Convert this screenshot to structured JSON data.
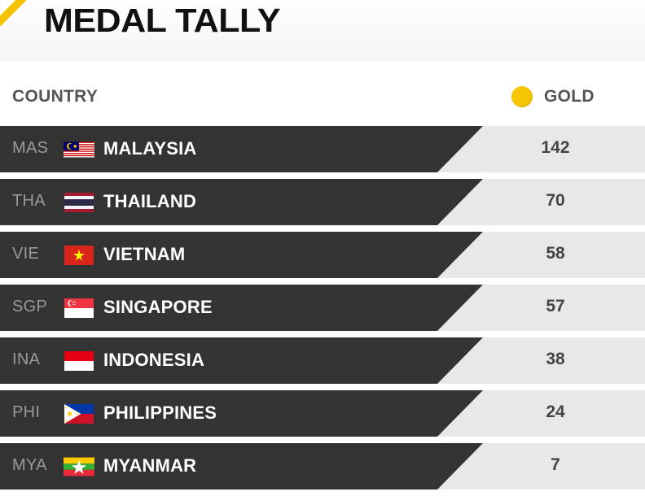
{
  "title": "MEDAL TALLY",
  "header": {
    "country_label": "COUNTRY",
    "gold_label": "GOLD",
    "gold_icon": "gold-medal-icon",
    "gold_color": "#f7c600"
  },
  "colors": {
    "row_dark": "#333333",
    "row_light": "#e8e8e8",
    "accent": "#f5c400"
  },
  "rows": [
    {
      "code": "MAS",
      "flag": "malaysia-flag-icon",
      "name": "MALAYSIA",
      "gold": "142"
    },
    {
      "code": "THA",
      "flag": "thailand-flag-icon",
      "name": "THAILAND",
      "gold": "70"
    },
    {
      "code": "VIE",
      "flag": "vietnam-flag-icon",
      "name": "VIETNAM",
      "gold": "58"
    },
    {
      "code": "SGP",
      "flag": "singapore-flag-icon",
      "name": "SINGAPORE",
      "gold": "57"
    },
    {
      "code": "INA",
      "flag": "indonesia-flag-icon",
      "name": "INDONESIA",
      "gold": "38"
    },
    {
      "code": "PHI",
      "flag": "philippines-flag-icon",
      "name": "PHILIPPINES",
      "gold": "24"
    },
    {
      "code": "MYA",
      "flag": "myanmar-flag-icon",
      "name": "MYANMAR",
      "gold": "7"
    }
  ]
}
